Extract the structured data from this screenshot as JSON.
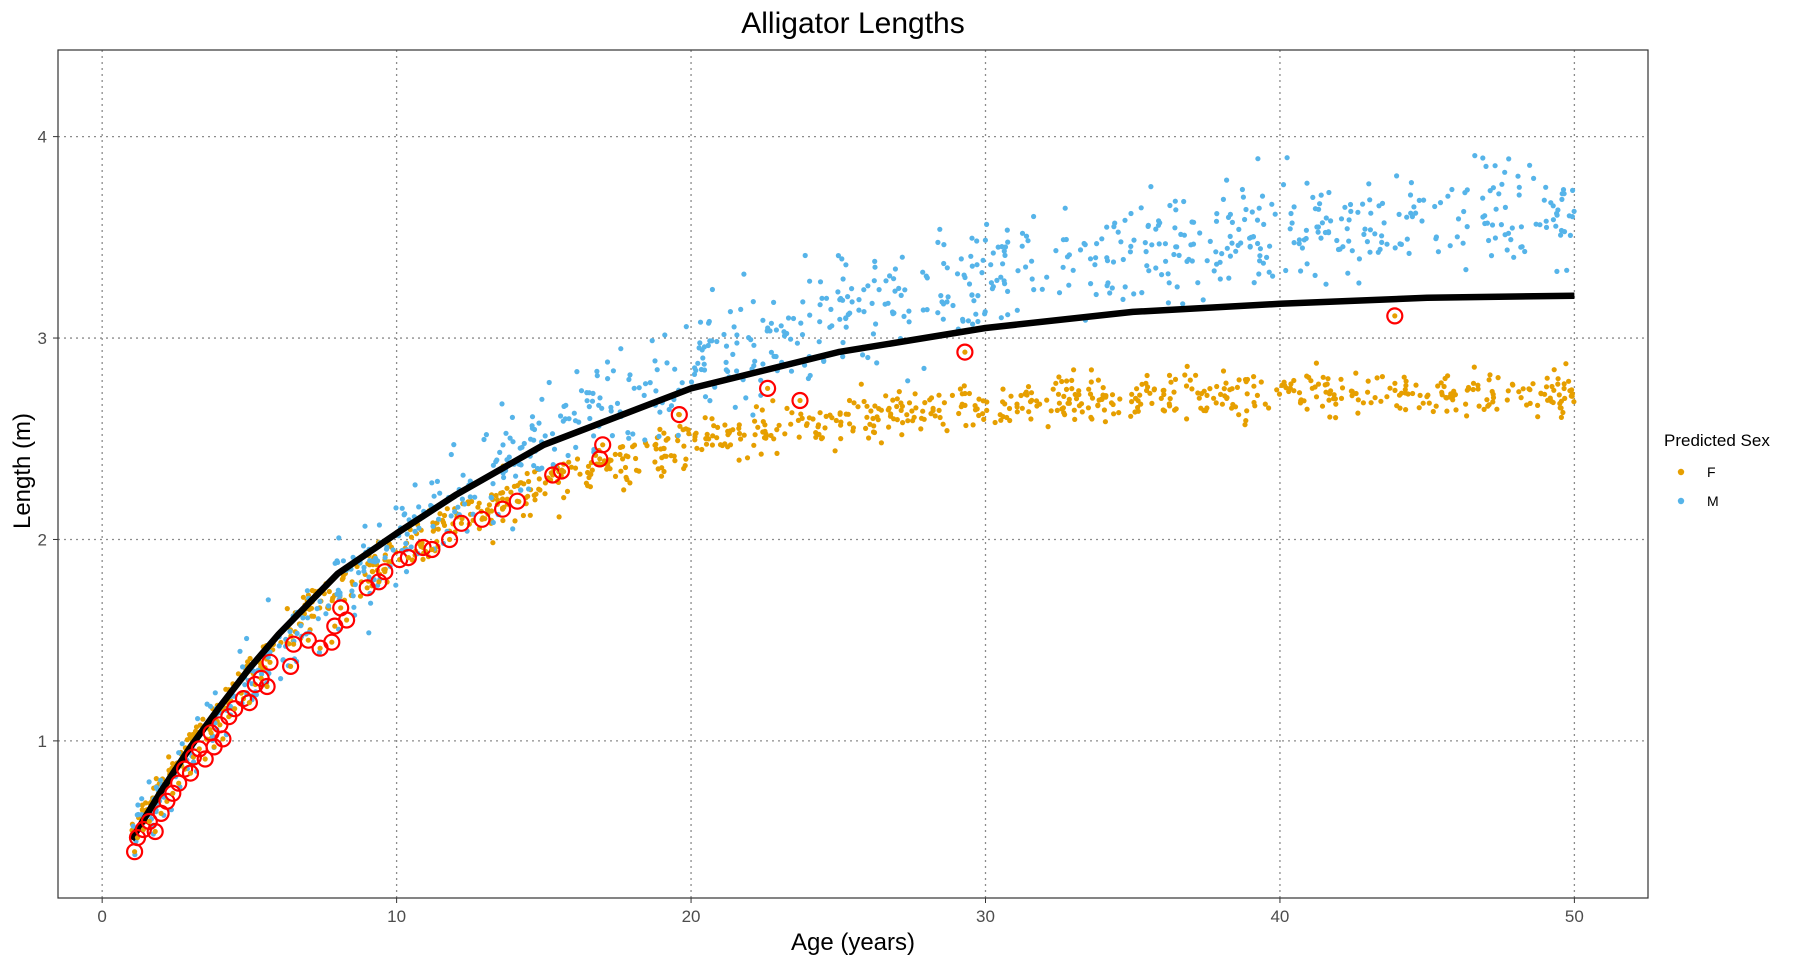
{
  "chart_data": {
    "type": "scatter",
    "title": "Alligator Lengths",
    "xlabel": "Age (years)",
    "ylabel": "Length (m)",
    "xlim": [
      -1.5,
      52.5
    ],
    "ylim": [
      0.22,
      4.43
    ],
    "x_ticks": [
      0,
      10,
      20,
      30,
      40,
      50
    ],
    "y_ticks": [
      1,
      2,
      3,
      4
    ],
    "grid": true,
    "grid_style": "dotted",
    "legend": {
      "title": "Predicted Sex",
      "position": "right",
      "entries": [
        {
          "label": "F",
          "color": "#E69F00"
        },
        {
          "label": "M",
          "color": "#56B4E9"
        }
      ]
    },
    "series": [
      {
        "name": "F",
        "color": "#E69F00",
        "kind": "points",
        "model": "von_bertalanffy",
        "linf": 2.75,
        "l0": 0.3,
        "k": 0.11,
        "noise_sd": 0.06,
        "n": 900,
        "x_range": [
          1,
          50
        ]
      },
      {
        "name": "M",
        "color": "#56B4E9",
        "kind": "points",
        "model": "von_bertalanffy",
        "linf": 3.75,
        "l0": 0.3,
        "k": 0.068,
        "noise_sd": 0.13,
        "n": 900,
        "x_range": [
          1,
          50
        ]
      }
    ],
    "fitted_curve": {
      "color": "#000000",
      "model": "von_bertalanffy",
      "linf": 3.25,
      "l0": 0.25,
      "k": 0.09,
      "points": [
        {
          "x": 1,
          "y": 0.51
        },
        {
          "x": 2,
          "y": 0.75
        },
        {
          "x": 3,
          "y": 0.97
        },
        {
          "x": 4,
          "y": 1.17
        },
        {
          "x": 5,
          "y": 1.36
        },
        {
          "x": 6,
          "y": 1.53
        },
        {
          "x": 8,
          "y": 1.83
        },
        {
          "x": 10,
          "y": 2.03
        },
        {
          "x": 12,
          "y": 2.22
        },
        {
          "x": 15,
          "y": 2.47
        },
        {
          "x": 20,
          "y": 2.75
        },
        {
          "x": 25,
          "y": 2.93
        },
        {
          "x": 30,
          "y": 3.05
        },
        {
          "x": 35,
          "y": 3.13
        },
        {
          "x": 40,
          "y": 3.17
        },
        {
          "x": 45,
          "y": 3.2
        },
        {
          "x": 50,
          "y": 3.21
        }
      ]
    },
    "highlighted_points": {
      "marker": "red-ring",
      "color": "#ff0000",
      "points": [
        {
          "x": 1.1,
          "y": 0.45
        },
        {
          "x": 1.2,
          "y": 0.52
        },
        {
          "x": 1.4,
          "y": 0.56
        },
        {
          "x": 1.6,
          "y": 0.6
        },
        {
          "x": 1.8,
          "y": 0.55
        },
        {
          "x": 2.0,
          "y": 0.64
        },
        {
          "x": 2.2,
          "y": 0.7
        },
        {
          "x": 2.4,
          "y": 0.74
        },
        {
          "x": 2.6,
          "y": 0.79
        },
        {
          "x": 2.8,
          "y": 0.86
        },
        {
          "x": 3.0,
          "y": 0.84
        },
        {
          "x": 3.1,
          "y": 0.92
        },
        {
          "x": 3.3,
          "y": 0.96
        },
        {
          "x": 3.5,
          "y": 0.91
        },
        {
          "x": 3.7,
          "y": 1.04
        },
        {
          "x": 3.8,
          "y": 0.97
        },
        {
          "x": 4.0,
          "y": 1.08
        },
        {
          "x": 4.1,
          "y": 1.01
        },
        {
          "x": 4.3,
          "y": 1.12
        },
        {
          "x": 4.5,
          "y": 1.16
        },
        {
          "x": 4.8,
          "y": 1.21
        },
        {
          "x": 5.0,
          "y": 1.19
        },
        {
          "x": 5.2,
          "y": 1.28
        },
        {
          "x": 5.4,
          "y": 1.31
        },
        {
          "x": 5.6,
          "y": 1.27
        },
        {
          "x": 5.7,
          "y": 1.39
        },
        {
          "x": 6.4,
          "y": 1.37
        },
        {
          "x": 6.5,
          "y": 1.48
        },
        {
          "x": 7.0,
          "y": 1.5
        },
        {
          "x": 7.4,
          "y": 1.46
        },
        {
          "x": 7.8,
          "y": 1.49
        },
        {
          "x": 7.9,
          "y": 1.57
        },
        {
          "x": 8.1,
          "y": 1.66
        },
        {
          "x": 8.3,
          "y": 1.6
        },
        {
          "x": 9.0,
          "y": 1.76
        },
        {
          "x": 9.4,
          "y": 1.79
        },
        {
          "x": 9.6,
          "y": 1.84
        },
        {
          "x": 10.1,
          "y": 1.9
        },
        {
          "x": 10.4,
          "y": 1.91
        },
        {
          "x": 10.9,
          "y": 1.96
        },
        {
          "x": 11.2,
          "y": 1.95
        },
        {
          "x": 11.8,
          "y": 2.0
        },
        {
          "x": 12.2,
          "y": 2.08
        },
        {
          "x": 12.9,
          "y": 2.1
        },
        {
          "x": 13.6,
          "y": 2.15
        },
        {
          "x": 14.1,
          "y": 2.19
        },
        {
          "x": 15.3,
          "y": 2.32
        },
        {
          "x": 15.6,
          "y": 2.34
        },
        {
          "x": 16.9,
          "y": 2.4
        },
        {
          "x": 17.0,
          "y": 2.47
        },
        {
          "x": 19.6,
          "y": 2.62
        },
        {
          "x": 22.6,
          "y": 2.75
        },
        {
          "x": 23.7,
          "y": 2.69
        },
        {
          "x": 29.3,
          "y": 2.93
        },
        {
          "x": 43.9,
          "y": 3.11
        }
      ]
    }
  }
}
